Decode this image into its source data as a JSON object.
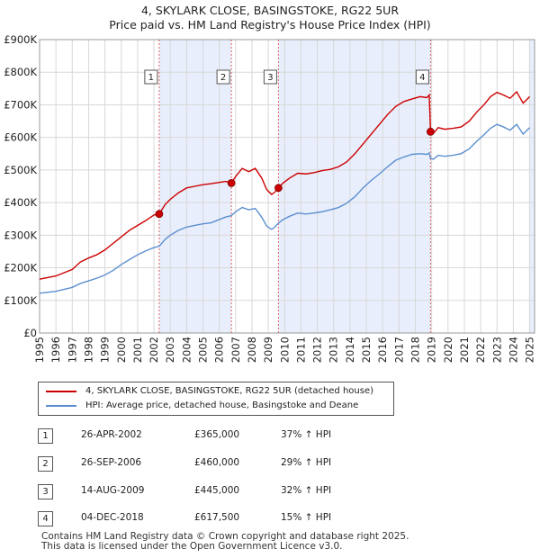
{
  "chart_data": {
    "type": "line",
    "title": "4, SKYLARK CLOSE, BASINGSTOKE, RG22 5UR",
    "subtitle": "Price paid vs. HM Land Registry's House Price Index (HPI)",
    "xlabel": "",
    "ylabel": "",
    "xlim": [
      1995,
      2025.3
    ],
    "ylim": [
      0,
      900000
    ],
    "y_ticks": [
      0,
      100000,
      200000,
      300000,
      400000,
      500000,
      600000,
      700000,
      800000,
      900000
    ],
    "y_tick_labels": [
      "£0",
      "£100K",
      "£200K",
      "£300K",
      "£400K",
      "£500K",
      "£600K",
      "£700K",
      "£800K",
      "£900K"
    ],
    "x_ticks": [
      1995,
      1996,
      1997,
      1998,
      1999,
      2000,
      2001,
      2002,
      2003,
      2004,
      2005,
      2006,
      2007,
      2008,
      2009,
      2010,
      2011,
      2012,
      2013,
      2014,
      2015,
      2016,
      2017,
      2018,
      2019,
      2020,
      2021,
      2022,
      2023,
      2024,
      2025
    ],
    "x_tick_labels": [
      "1995",
      "1996",
      "1997",
      "1998",
      "1999",
      "2000",
      "2001",
      "2002",
      "2003",
      "2004",
      "2005",
      "2006",
      "2007",
      "2008",
      "2009",
      "2010",
      "2011",
      "2012",
      "2013",
      "2014",
      "2015",
      "2016",
      "2017",
      "2018",
      "2019",
      "2020",
      "2021",
      "2022",
      "2023",
      "2024",
      "2025"
    ],
    "grid": true,
    "colors": {
      "property": "#cc0000",
      "hpi": "#5b8fd0",
      "shade": "#e8eefb",
      "marker_line": "#e06060"
    },
    "series": [
      {
        "name": "4, SKYLARK CLOSE, BASINGSTOKE, RG22 5UR (detached house)",
        "x": [
          1995.0,
          1996.0,
          1997.0,
          1997.5,
          1998.0,
          1998.5,
          1999.0,
          1999.5,
          2000.0,
          2000.5,
          2001.0,
          2001.5,
          2002.0,
          2002.32,
          2002.7,
          2003.0,
          2003.5,
          2004.0,
          2004.5,
          2005.0,
          2005.5,
          2006.0,
          2006.4,
          2006.74,
          2007.0,
          2007.4,
          2007.8,
          2008.2,
          2008.6,
          2008.9,
          2009.2,
          2009.4,
          2009.62,
          2009.9,
          2010.3,
          2010.8,
          2011.3,
          2011.8,
          2012.3,
          2012.8,
          2013.3,
          2013.8,
          2014.3,
          2014.8,
          2015.3,
          2015.8,
          2016.3,
          2016.8,
          2017.3,
          2017.8,
          2018.3,
          2018.7,
          2018.85,
          2018.93,
          2019.1,
          2019.4,
          2019.8,
          2020.3,
          2020.8,
          2021.3,
          2021.8,
          2022.2,
          2022.6,
          2023.0,
          2023.4,
          2023.8,
          2024.2,
          2024.6,
          2025.0
        ],
        "values": [
          165000,
          175000,
          195000,
          218000,
          230000,
          240000,
          255000,
          275000,
          295000,
          315000,
          330000,
          345000,
          362000,
          365000,
          395000,
          410000,
          430000,
          445000,
          450000,
          455000,
          458000,
          462000,
          465000,
          460000,
          480000,
          505000,
          495000,
          505000,
          475000,
          440000,
          425000,
          432000,
          445000,
          460000,
          475000,
          490000,
          488000,
          492000,
          498000,
          502000,
          510000,
          525000,
          550000,
          580000,
          610000,
          640000,
          670000,
          695000,
          710000,
          718000,
          725000,
          722000,
          730000,
          617500,
          612000,
          630000,
          625000,
          628000,
          632000,
          650000,
          680000,
          700000,
          725000,
          738000,
          730000,
          720000,
          740000,
          705000,
          725000
        ]
      },
      {
        "name": "HPI: Average price, detached house, Basingstoke and Deane",
        "x": [
          1995.0,
          1996.0,
          1997.0,
          1997.5,
          1998.0,
          1998.5,
          1999.0,
          1999.5,
          2000.0,
          2000.5,
          2001.0,
          2001.5,
          2002.0,
          2002.32,
          2002.7,
          2003.0,
          2003.5,
          2004.0,
          2004.5,
          2005.0,
          2005.5,
          2006.0,
          2006.4,
          2006.74,
          2007.0,
          2007.4,
          2007.8,
          2008.2,
          2008.6,
          2008.9,
          2009.2,
          2009.4,
          2009.62,
          2009.9,
          2010.3,
          2010.8,
          2011.3,
          2011.8,
          2012.3,
          2012.8,
          2013.3,
          2013.8,
          2014.3,
          2014.8,
          2015.3,
          2015.8,
          2016.3,
          2016.8,
          2017.3,
          2017.8,
          2018.3,
          2018.7,
          2018.85,
          2018.93,
          2019.1,
          2019.4,
          2019.8,
          2020.3,
          2020.8,
          2021.3,
          2021.8,
          2022.2,
          2022.6,
          2023.0,
          2023.4,
          2023.8,
          2024.2,
          2024.6,
          2025.0
        ],
        "values": [
          122000,
          128000,
          140000,
          152000,
          160000,
          168000,
          178000,
          192000,
          210000,
          225000,
          240000,
          252000,
          262000,
          266000,
          288000,
          300000,
          315000,
          325000,
          330000,
          335000,
          338000,
          348000,
          356000,
          360000,
          372000,
          385000,
          378000,
          382000,
          355000,
          328000,
          318000,
          325000,
          337000,
          348000,
          358000,
          368000,
          365000,
          368000,
          372000,
          378000,
          385000,
          398000,
          418000,
          445000,
          468000,
          488000,
          510000,
          530000,
          540000,
          548000,
          550000,
          548000,
          552000,
          536000,
          533000,
          545000,
          542000,
          545000,
          550000,
          565000,
          590000,
          608000,
          628000,
          640000,
          632000,
          622000,
          640000,
          610000,
          630000
        ]
      }
    ],
    "sales": [
      {
        "n": "1",
        "x": 2002.32,
        "value": 365000
      },
      {
        "n": "2",
        "x": 2006.74,
        "value": 460000
      },
      {
        "n": "3",
        "x": 2009.62,
        "value": 445000
      },
      {
        "n": "4",
        "x": 2018.93,
        "value": 617500
      }
    ],
    "shaded_spans": [
      [
        2002.32,
        2006.74
      ],
      [
        2009.62,
        2018.93
      ],
      [
        2024.95,
        2025.3
      ]
    ]
  },
  "legend": {
    "property_label": "4, SKYLARK CLOSE, BASINGSTOKE, RG22 5UR (detached house)",
    "hpi_label": "HPI: Average price, detached house, Basingstoke and Deane"
  },
  "sales_table": [
    {
      "n": "1",
      "date": "26-APR-2002",
      "price": "£365,000",
      "hpi": "37% ↑ HPI"
    },
    {
      "n": "2",
      "date": "26-SEP-2006",
      "price": "£460,000",
      "hpi": "29% ↑ HPI"
    },
    {
      "n": "3",
      "date": "14-AUG-2009",
      "price": "£445,000",
      "hpi": "32% ↑ HPI"
    },
    {
      "n": "4",
      "date": "04-DEC-2018",
      "price": "£617,500",
      "hpi": "15% ↑ HPI"
    }
  ],
  "footer": {
    "line1": "Contains HM Land Registry data © Crown copyright and database right 2025.",
    "line2": "This data is licensed under the Open Government Licence v3.0."
  }
}
